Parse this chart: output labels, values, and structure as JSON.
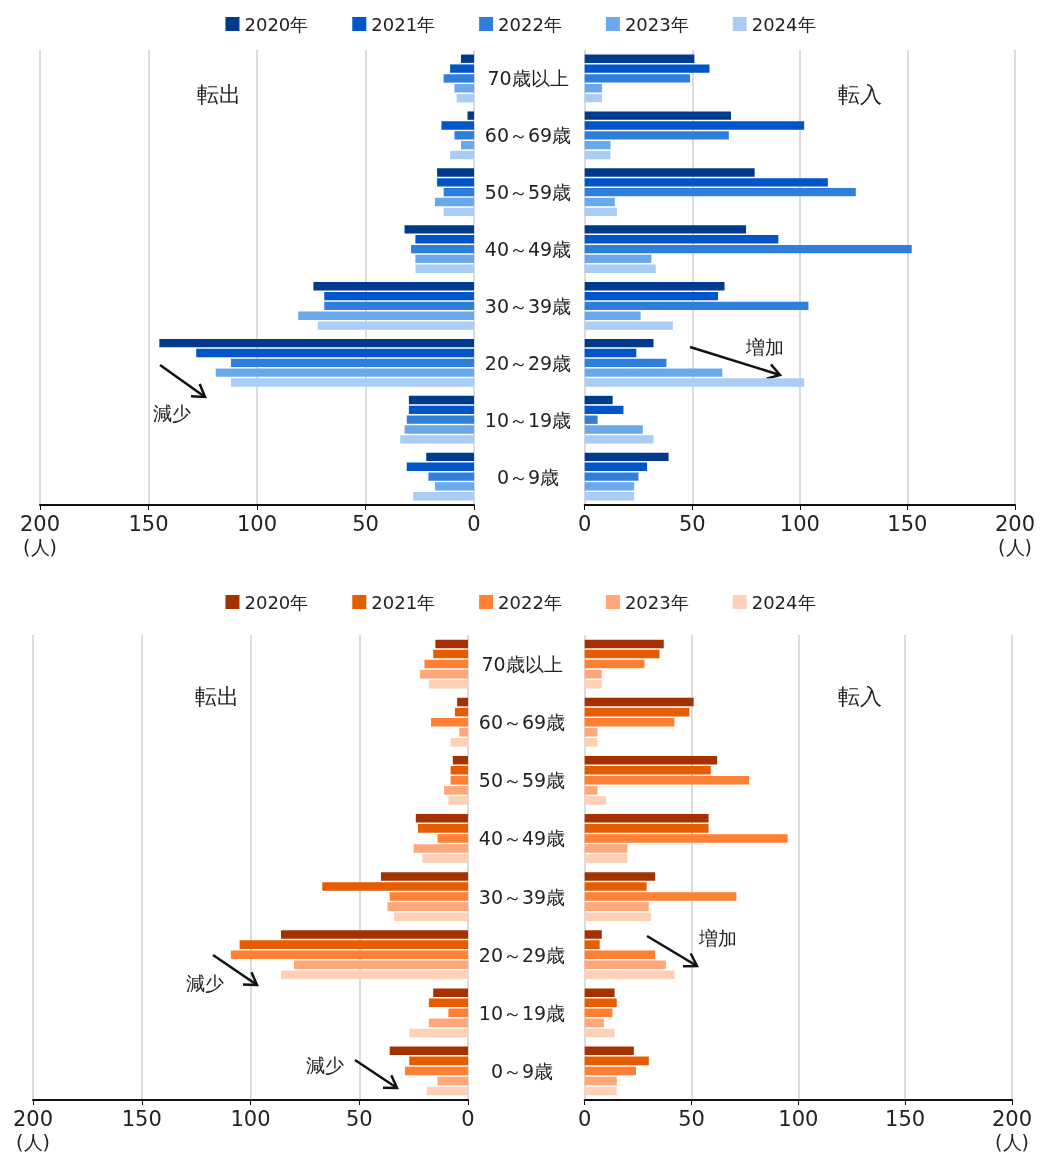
{
  "chart_data": [
    {
      "type": "bar",
      "orientation": "horizontal",
      "title": "転出",
      "xlabel": "(人)",
      "categories": [
        "70歳以上",
        "60～69歳",
        "50～59歳",
        "40～49歳",
        "30～39歳",
        "20～29歳",
        "10～19歳",
        "0～9歳"
      ],
      "series": [
        {
          "name": "2020年",
          "color": "#003a8c",
          "values": [
            6,
            3,
            17,
            32,
            74,
            145,
            30,
            22
          ]
        },
        {
          "name": "2021年",
          "color": "#0055c8",
          "values": [
            11,
            15,
            17,
            27,
            69,
            128,
            30,
            31
          ]
        },
        {
          "name": "2022年",
          "color": "#2e7fdb",
          "values": [
            14,
            9,
            14,
            29,
            69,
            112,
            31,
            21
          ]
        },
        {
          "name": "2023年",
          "color": "#6aa8ec",
          "values": [
            9,
            6,
            18,
            27,
            81,
            119,
            32,
            18
          ]
        },
        {
          "name": "2024年",
          "color": "#aacdf5",
          "values": [
            8,
            11,
            14,
            27,
            72,
            112,
            34,
            28
          ]
        }
      ],
      "xlim": [
        200,
        0
      ],
      "xticks": [
        200,
        150,
        100,
        50,
        0
      ],
      "grid": "x",
      "legend": "top",
      "annotations": [
        "減少"
      ]
    },
    {
      "type": "bar",
      "orientation": "horizontal",
      "title": "転入",
      "xlabel": "(人)",
      "categories": [
        null,
        null,
        null,
        null,
        null,
        null,
        null,
        null
      ],
      "series": [
        {
          "color": "#003a8c",
          "values": [
            51,
            68,
            79,
            75,
            65,
            32,
            13,
            39
          ]
        },
        {
          "color": "#0055c8",
          "values": [
            58,
            102,
            113,
            90,
            62,
            24,
            18,
            29
          ]
        },
        {
          "color": "#2e7fdb",
          "values": [
            49,
            67,
            126,
            152,
            104,
            38,
            6,
            25
          ]
        },
        {
          "color": "#6aa8ec",
          "values": [
            8,
            12,
            14,
            31,
            26,
            64,
            27,
            23
          ]
        },
        {
          "color": "#aacdf5",
          "values": [
            8,
            12,
            15,
            33,
            41,
            102,
            32,
            23
          ]
        }
      ],
      "xlim": [
        0,
        200
      ],
      "xticks": [
        0,
        50,
        100,
        150,
        200
      ],
      "grid": "x",
      "tick_labels": "x",
      "annotations": [
        "増加"
      ]
    },
    {
      "type": "bar",
      "orientation": "horizontal",
      "title": "転出",
      "xlabel": "(人)",
      "categories": [
        "70歳以上",
        "60～69歳",
        "50～59歳",
        "40～49歳",
        "30～39歳",
        "20～29歳",
        "10～19歳",
        "0～9歳"
      ],
      "series": [
        {
          "name": "2020年",
          "color": "#a33200",
          "values": [
            15,
            5,
            7,
            24,
            40,
            86,
            16,
            36
          ]
        },
        {
          "name": "2021年",
          "color": "#e65c00",
          "values": [
            16,
            6,
            8,
            23,
            67,
            105,
            18,
            27
          ]
        },
        {
          "name": "2022年",
          "color": "#ff7f33",
          "values": [
            20,
            17,
            8,
            14,
            36,
            109,
            9,
            29
          ]
        },
        {
          "name": "2023年",
          "color": "#ffa77a",
          "values": [
            22,
            4,
            11,
            25,
            37,
            80,
            18,
            14
          ]
        },
        {
          "name": "2024年",
          "color": "#ffd0b5",
          "values": [
            18,
            8,
            9,
            21,
            34,
            86,
            27,
            19
          ]
        }
      ],
      "xlim": [
        200,
        0
      ],
      "xticks": [
        200,
        150,
        100,
        50,
        0
      ],
      "grid": "x",
      "legend": "top",
      "annotations": [
        "減少",
        "減少"
      ]
    },
    {
      "type": "bar",
      "orientation": "horizontal",
      "title": "転入",
      "xlabel": "(人)",
      "categories": [
        null,
        null,
        null,
        null,
        null,
        null,
        null,
        null
      ],
      "series": [
        {
          "color": "#a33200",
          "values": [
            37,
            51,
            62,
            58,
            33,
            8,
            14,
            23
          ]
        },
        {
          "color": "#e65c00",
          "values": [
            35,
            49,
            59,
            58,
            29,
            7,
            15,
            30
          ]
        },
        {
          "color": "#ff7f33",
          "values": [
            28,
            42,
            77,
            95,
            71,
            33,
            13,
            24
          ]
        },
        {
          "color": "#ffa77a",
          "values": [
            8,
            6,
            6,
            20,
            30,
            38,
            9,
            15
          ]
        },
        {
          "color": "#ffd0b5",
          "values": [
            8,
            6,
            10,
            20,
            31,
            42,
            14,
            15
          ]
        }
      ],
      "xlim": [
        0,
        200
      ],
      "xticks": [
        0,
        50,
        100,
        150,
        200
      ],
      "grid": "x",
      "tick_labels": "x",
      "annotations": [
        "増加"
      ]
    }
  ]
}
